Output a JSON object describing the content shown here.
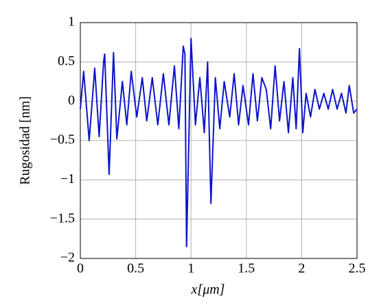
{
  "chart_data": {
    "type": "line",
    "xlabel": "x[μm]",
    "ylabel": "Rugosidad [nm]",
    "xlim": [
      0,
      2.5
    ],
    "ylim": [
      -2,
      1
    ],
    "xticks": [
      0,
      0.5,
      1,
      1.5,
      2,
      2.5
    ],
    "yticks": [
      {
        "value": -2,
        "label": "−2"
      },
      {
        "value": -1.5,
        "label": "−1.5"
      },
      {
        "value": -1,
        "label": "−1"
      },
      {
        "value": -0.5,
        "label": "−0.5"
      },
      0,
      0.5,
      1
    ],
    "grid": true,
    "series": [
      {
        "name": "Rugosidad",
        "color": "#0a14c8",
        "x": [
          0,
          0.03,
          0.08,
          0.13,
          0.17,
          0.21,
          0.22,
          0.26,
          0.3,
          0.33,
          0.38,
          0.42,
          0.46,
          0.51,
          0.56,
          0.6,
          0.65,
          0.7,
          0.75,
          0.8,
          0.85,
          0.89,
          0.93,
          0.945,
          0.96,
          1.0,
          1.04,
          1.08,
          1.12,
          1.15,
          1.18,
          1.22,
          1.26,
          1.3,
          1.35,
          1.39,
          1.43,
          1.47,
          1.52,
          1.56,
          1.6,
          1.64,
          1.68,
          1.72,
          1.76,
          1.8,
          1.84,
          1.88,
          1.92,
          1.95,
          1.98,
          2.01,
          2.04,
          2.08,
          2.12,
          2.16,
          2.2,
          2.24,
          2.28,
          2.32,
          2.36,
          2.4,
          2.43,
          2.47,
          2.5
        ],
        "values": [
          -0.1,
          0.38,
          -0.5,
          0.42,
          -0.45,
          0.5,
          0.6,
          -0.93,
          0.62,
          -0.48,
          0.25,
          -0.3,
          0.38,
          -0.2,
          0.3,
          -0.25,
          0.3,
          -0.3,
          0.35,
          -0.3,
          0.45,
          -0.35,
          0.7,
          0.6,
          -1.85,
          0.8,
          -0.3,
          0.3,
          -0.4,
          0.5,
          -1.3,
          0.3,
          -0.35,
          0.25,
          -0.2,
          0.35,
          -0.3,
          0.2,
          -0.3,
          0.35,
          -0.25,
          0.3,
          0.15,
          -0.35,
          0.45,
          -0.25,
          0.25,
          -0.4,
          0.3,
          -0.35,
          0.67,
          -0.4,
          0.1,
          -0.2,
          0.15,
          -0.1,
          0.1,
          -0.1,
          0.15,
          -0.1,
          0.1,
          -0.15,
          0.2,
          -0.15,
          -0.1
        ]
      }
    ]
  }
}
